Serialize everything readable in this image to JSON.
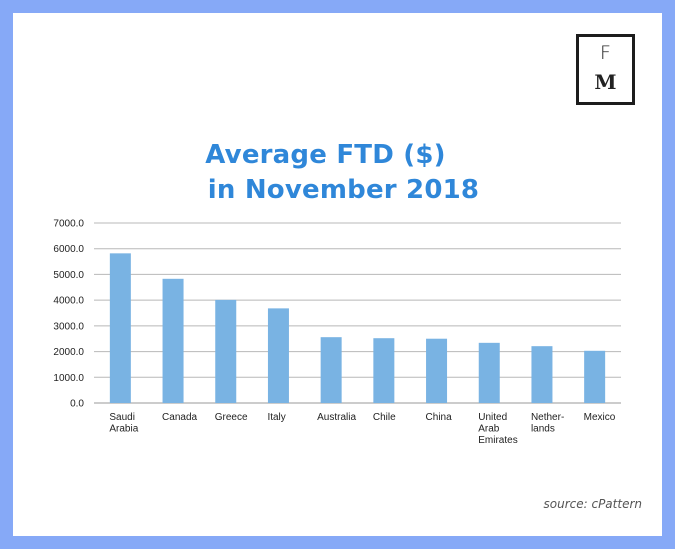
{
  "logo": {
    "top": "F",
    "bottom": "M"
  },
  "title_lines": [
    "Average FTD ($)",
    "in November 2018"
  ],
  "source": "source: cPattern",
  "colors": {
    "bar": "#79b3e3",
    "title": "#2f87d9",
    "frame": "#86a9f7"
  },
  "chart_data": {
    "type": "bar",
    "title": "Average FTD ($) in November 2018",
    "xlabel": "",
    "ylabel": "",
    "ylim": [
      0,
      7000
    ],
    "yticks": [
      "0.0",
      "1000.0",
      "2000.0",
      "3000.0",
      "4000.0",
      "5000.0",
      "6000.0",
      "7000.0"
    ],
    "grid": true,
    "categories": [
      [
        "Saudi",
        "Arabia"
      ],
      [
        "Canada"
      ],
      [
        "Greece"
      ],
      [
        "Italy"
      ],
      [
        "Australia"
      ],
      [
        "Chile"
      ],
      [
        "China"
      ],
      [
        "United",
        "Arab",
        "Emirates"
      ],
      [
        "Nether-",
        "lands"
      ],
      [
        "Mexico"
      ]
    ],
    "values": [
      5820,
      4830,
      4010,
      3680,
      2560,
      2520,
      2500,
      2340,
      2210,
      2030
    ]
  }
}
